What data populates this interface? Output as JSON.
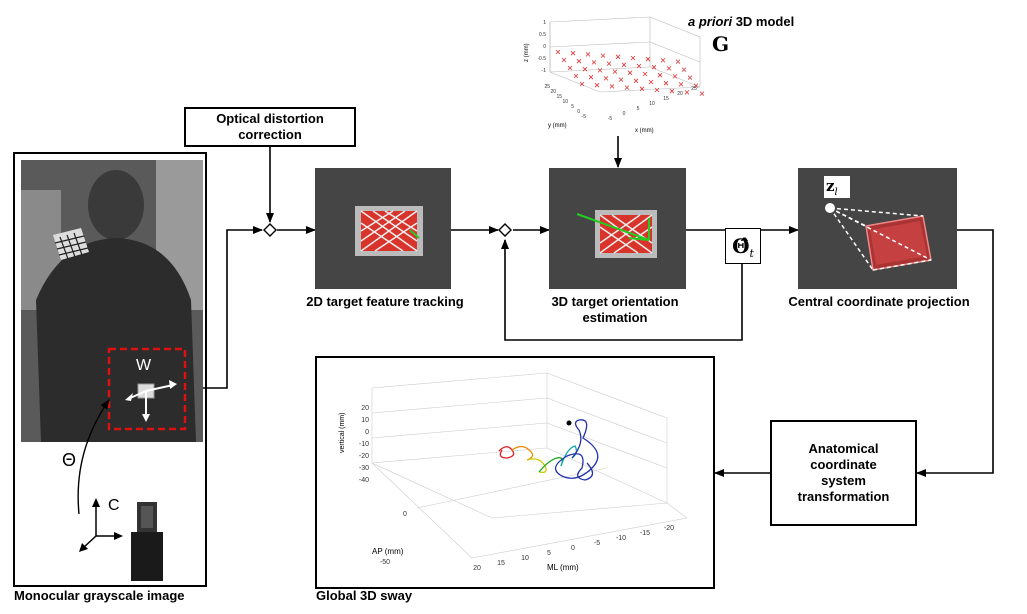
{
  "stages": {
    "input_caption": "Monocular grayscale image",
    "distortion": "Optical distortion correction",
    "tracking": "2D target feature tracking",
    "orientation": "3D target orientation estimation",
    "projection": "Central coordinate projection",
    "anatomical": "Anatomical coordinate system transformation",
    "sway_caption": "Global 3D sway",
    "model_prefix": "a priori",
    "model_suffix": " 3D model"
  },
  "symbols": {
    "model_symbol": "G",
    "theta_hat": "Θ̂",
    "theta_sub": "t",
    "z": "z",
    "z_sub": "l",
    "world": "W",
    "theta": "Θ",
    "camera": "C"
  },
  "model_plot": {
    "zlabel": "z (mm)",
    "ylabel": "y (mm)",
    "xlabel": "x (mm)",
    "z_ticks": [
      "1",
      "0.5",
      "0",
      "-0.5",
      "-1"
    ],
    "y_ticks": [
      "25",
      "20",
      "15",
      "10",
      "5",
      "0",
      "-5"
    ],
    "x_ticks": [
      "-5",
      "0",
      "5",
      "10",
      "15",
      "20",
      "25"
    ]
  },
  "sway_plot": {
    "zlabel": "vertical (mm)",
    "ylabel": "AP (mm)",
    "xlabel": "ML (mm)",
    "z_ticks": [
      "20",
      "10",
      "0",
      "-10",
      "-20",
      "-30",
      "-40"
    ],
    "y_ticks": [
      "0",
      "-50"
    ],
    "x_ticks": [
      "20",
      "15",
      "10",
      "5",
      "0",
      "-5",
      "-10",
      "-15",
      "-20"
    ]
  },
  "colors": {
    "target_red": "#d9342b",
    "track_green": "#22cc22",
    "dashed_red": "#d11",
    "sway_blue": "#2233aa"
  }
}
